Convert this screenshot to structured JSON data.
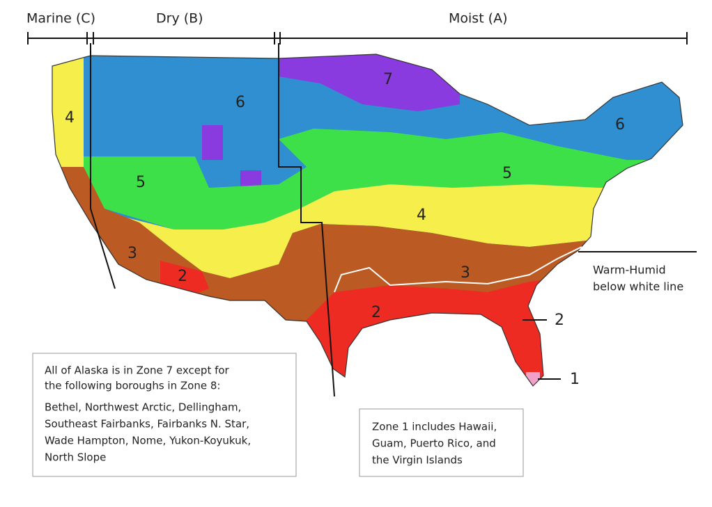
{
  "moisture_regimes": [
    {
      "label": "Marine (C)"
    },
    {
      "label": "Dry (B)"
    },
    {
      "label": "Moist (A)"
    }
  ],
  "zone_labels": [
    "4",
    "6",
    "5",
    "3",
    "2",
    "7",
    "6",
    "5",
    "4",
    "3",
    "2"
  ],
  "callouts": {
    "warm_humid": [
      "Warm-Humid",
      "below white line"
    ],
    "zone_2": "2",
    "zone_1": "1"
  },
  "notes": {
    "alaska": {
      "intro": [
        "All of Alaska is in Zone 7 except for",
        "the following boroughs in Zone 8:"
      ],
      "boroughs": [
        "Bethel, Northwest Arctic, Dellingham,",
        "Southeast Fairbanks, Fairbanks N. Star,",
        "Wade Hampton, Nome, Yukon-Koyukuk,",
        "North Slope"
      ]
    },
    "zone_1": [
      "Zone 1 includes Hawaii,",
      "Guam, Puerto Rico, and",
      "the Virgin Islands"
    ]
  }
}
